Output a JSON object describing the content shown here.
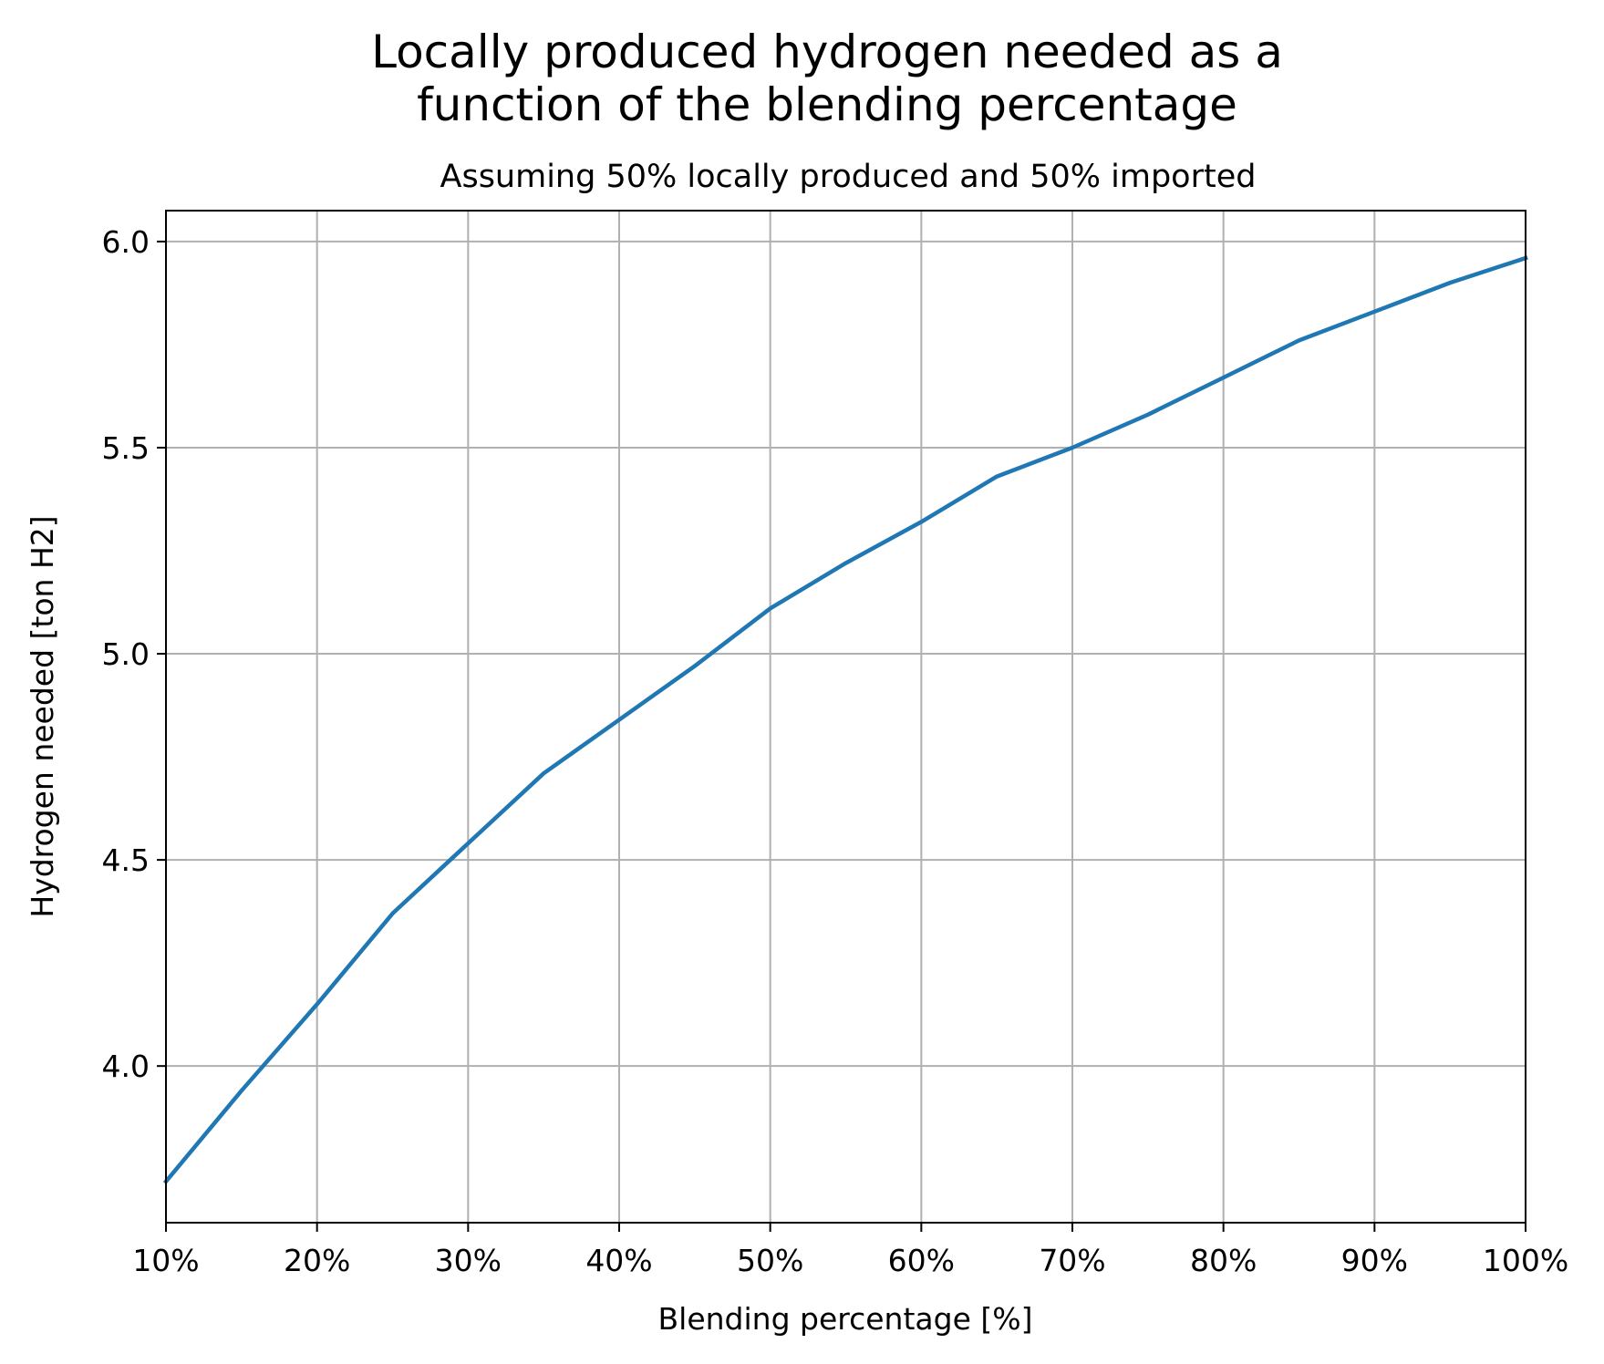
{
  "chart_data": {
    "type": "line",
    "title": "Locally produced hydrogen needed as a\nfunction of the blending percentage",
    "subtitle": "Assuming 50% locally produced and 50% imported",
    "xlabel": "Blending percentage [%]",
    "ylabel": "Hydrogen needed [ton H2]",
    "xlim": [
      10,
      100
    ],
    "ylim": [
      3.62,
      6.075
    ],
    "grid": true,
    "x_ticks": [
      10,
      20,
      30,
      40,
      50,
      60,
      70,
      80,
      90,
      100
    ],
    "x_tick_labels": [
      "10%",
      "20%",
      "30%",
      "40%",
      "50%",
      "60%",
      "70%",
      "80%",
      "90%",
      "100%"
    ],
    "y_ticks": [
      4.0,
      4.5,
      5.0,
      5.5,
      6.0
    ],
    "y_tick_labels": [
      "4.0",
      "4.5",
      "5.0",
      "5.5",
      "6.0"
    ],
    "series": [
      {
        "color": "#1f77b4",
        "x": [
          10,
          15,
          20,
          25,
          30,
          35,
          40,
          45,
          50,
          55,
          60,
          65,
          70,
          75,
          80,
          85,
          90,
          95,
          100
        ],
        "y": [
          3.72,
          3.94,
          4.15,
          4.37,
          4.54,
          4.71,
          4.84,
          4.97,
          5.11,
          5.22,
          5.32,
          5.43,
          5.5,
          5.58,
          5.67,
          5.76,
          5.83,
          5.9,
          5.96
        ]
      }
    ]
  }
}
